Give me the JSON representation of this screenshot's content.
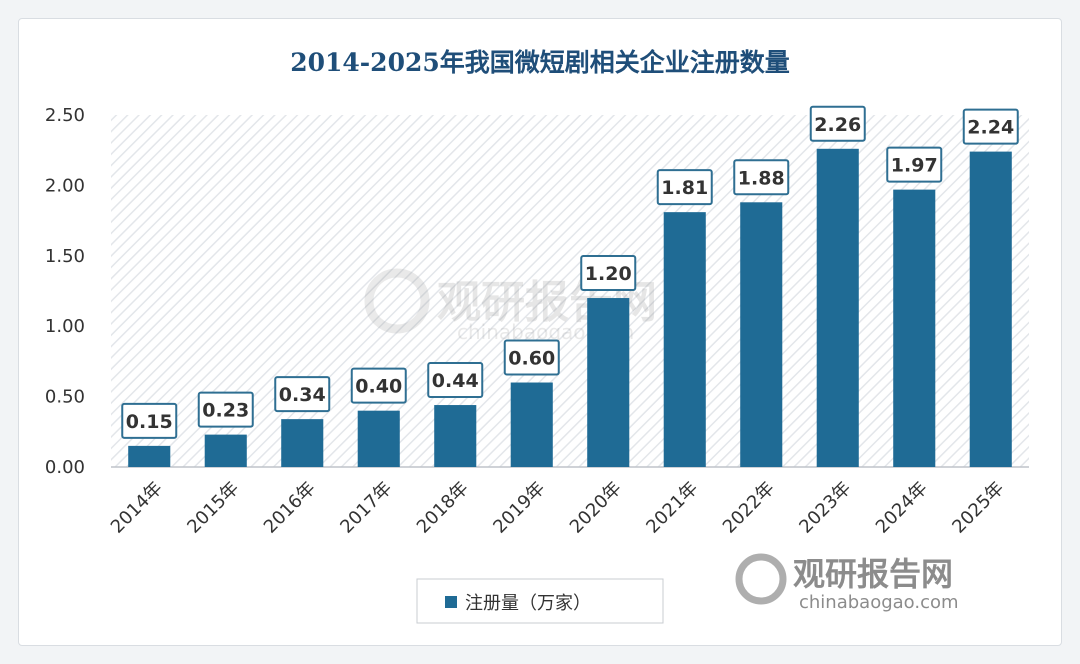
{
  "chart_data": {
    "type": "bar",
    "title": "2014-2025年我国微短剧相关企业注册数量",
    "categories": [
      "2014年",
      "2015年",
      "2016年",
      "2017年",
      "2018年",
      "2019年",
      "2020年",
      "2021年",
      "2022年",
      "2023年",
      "2024年",
      "2025年"
    ],
    "series": [
      {
        "name": "注册量（万家）",
        "values": [
          0.15,
          0.23,
          0.34,
          0.4,
          0.44,
          0.6,
          1.2,
          1.81,
          1.88,
          2.26,
          1.97,
          2.24
        ]
      }
    ],
    "data_labels": [
      "0.15",
      "0.23",
      "0.34",
      "0.40",
      "0.44",
      "0.60",
      "1.20",
      "1.81",
      "1.88",
      "2.26",
      "1.97",
      "2.24"
    ],
    "ylim": [
      0,
      2.5
    ],
    "yticks": [
      "0.00",
      "0.50",
      "1.00",
      "1.50",
      "2.00",
      "2.50"
    ],
    "legend_position": "bottom",
    "colors": {
      "bar": "#1f6b95",
      "title": "#1f4e79",
      "label_border": "#2f6f92"
    }
  },
  "watermark": {
    "brand": "观研报告网",
    "url": "chinabaogao.com"
  }
}
